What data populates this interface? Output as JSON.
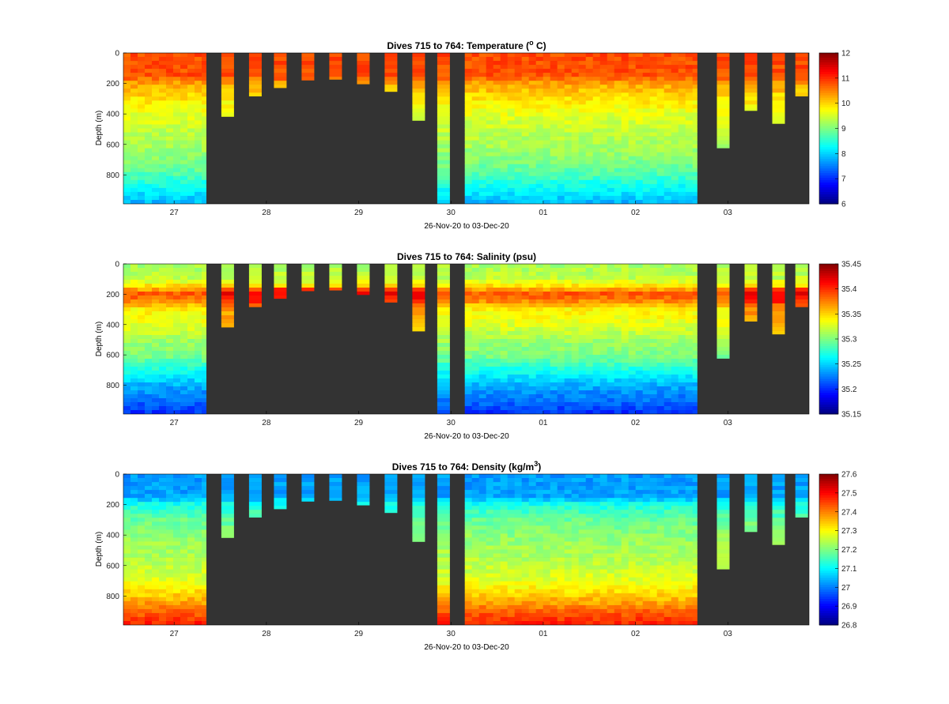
{
  "theme": {
    "background_color": "#ffffff",
    "no_data_color": "#333333",
    "axis_color": "#000000",
    "colormap": "jet"
  },
  "chart_data": [
    {
      "type": "heatmap",
      "variable": "temperature",
      "title_prefix": "Dives 715 to 764: Temperature (",
      "title_sup": "o",
      "title_suffix": " C)",
      "xlabel": "26-Nov-20 to 03-Dec-20",
      "ylabel": "Depth (m)",
      "x_range_days": [
        26.45,
        33.88
      ],
      "y_range": [
        0,
        990
      ],
      "y_ticks": [
        0,
        200,
        400,
        600,
        800
      ],
      "x_ticks": [
        {
          "label": "27",
          "day": 27
        },
        {
          "label": "28",
          "day": 28
        },
        {
          "label": "29",
          "day": 29
        },
        {
          "label": "30",
          "day": 30
        },
        {
          "label": "01",
          "day": 31
        },
        {
          "label": "02",
          "day": 32
        },
        {
          "label": "03",
          "day": 33
        }
      ],
      "clim": [
        6,
        12
      ],
      "colorbar_ticks": [
        "6",
        "7",
        "8",
        "9",
        "10",
        "11",
        "12"
      ],
      "profile": {
        "depths": [
          0,
          150,
          200,
          300,
          400,
          500,
          600,
          700,
          800,
          900,
          990
        ],
        "values": [
          10.8,
          10.8,
          10.3,
          9.9,
          9.6,
          9.4,
          9.25,
          9.05,
          8.7,
          8.2,
          7.8
        ]
      }
    },
    {
      "type": "heatmap",
      "variable": "salinity",
      "title_prefix": "Dives 715 to 764: Salinity (psu)",
      "title_sup": "",
      "title_suffix": "",
      "xlabel": "26-Nov-20 to 03-Dec-20",
      "ylabel": "Depth (m)",
      "x_range_days": [
        26.45,
        33.88
      ],
      "y_range": [
        0,
        990
      ],
      "y_ticks": [
        0,
        200,
        400,
        600,
        800
      ],
      "x_ticks": [
        {
          "label": "27",
          "day": 27
        },
        {
          "label": "28",
          "day": 28
        },
        {
          "label": "29",
          "day": 29
        },
        {
          "label": "30",
          "day": 30
        },
        {
          "label": "01",
          "day": 31
        },
        {
          "label": "02",
          "day": 32
        },
        {
          "label": "03",
          "day": 33
        }
      ],
      "clim": [
        35.15,
        35.45
      ],
      "colorbar_ticks": [
        "35.15",
        "35.2",
        "35.25",
        "35.3",
        "35.35",
        "35.4",
        "35.45"
      ],
      "profile": {
        "depths": [
          0,
          100,
          150,
          200,
          250,
          300,
          400,
          500,
          600,
          700,
          800,
          900,
          990
        ],
        "values": [
          35.31,
          35.32,
          35.35,
          35.39,
          35.37,
          35.34,
          35.33,
          35.31,
          35.3,
          35.27,
          35.24,
          35.22,
          35.2
        ]
      }
    },
    {
      "type": "heatmap",
      "variable": "density",
      "title_prefix": "Dives 715 to 764: Density (kg/m",
      "title_sup": "3",
      "title_suffix": ")",
      "xlabel": "26-Nov-20 to 03-Dec-20",
      "ylabel": "Depth (m)",
      "x_range_days": [
        26.45,
        33.88
      ],
      "y_range": [
        0,
        990
      ],
      "y_ticks": [
        0,
        200,
        400,
        600,
        800
      ],
      "x_ticks": [
        {
          "label": "27",
          "day": 27
        },
        {
          "label": "28",
          "day": 28
        },
        {
          "label": "29",
          "day": 29
        },
        {
          "label": "30",
          "day": 30
        },
        {
          "label": "01",
          "day": 31
        },
        {
          "label": "02",
          "day": 32
        },
        {
          "label": "03",
          "day": 33
        }
      ],
      "clim": [
        26.8,
        27.6
      ],
      "colorbar_ticks": [
        "26.8",
        "26.9",
        "27",
        "27.1",
        "27.2",
        "27.3",
        "27.4",
        "27.5",
        "27.6"
      ],
      "profile": {
        "depths": [
          0,
          150,
          200,
          300,
          400,
          500,
          600,
          700,
          800,
          900,
          990
        ],
        "values": [
          27.02,
          27.03,
          27.12,
          27.18,
          27.21,
          27.23,
          27.25,
          27.28,
          27.34,
          27.42,
          27.48
        ]
      }
    }
  ],
  "dive_data": {
    "continuous_segments_days": [
      [
        26.45,
        27.35
      ],
      [
        30.15,
        32.67
      ]
    ],
    "isolated_dives": [
      {
        "day": 27.58,
        "max_depth": 425
      },
      {
        "day": 27.88,
        "max_depth": 285
      },
      {
        "day": 28.15,
        "max_depth": 230
      },
      {
        "day": 28.45,
        "max_depth": 180
      },
      {
        "day": 28.75,
        "max_depth": 175
      },
      {
        "day": 29.05,
        "max_depth": 205
      },
      {
        "day": 29.35,
        "max_depth": 255
      },
      {
        "day": 29.65,
        "max_depth": 455
      },
      {
        "day": 29.92,
        "max_depth": 990
      },
      {
        "day": 32.95,
        "max_depth": 625
      },
      {
        "day": 33.25,
        "max_depth": 380
      },
      {
        "day": 33.55,
        "max_depth": 465
      },
      {
        "day": 33.8,
        "max_depth": 285
      }
    ]
  }
}
